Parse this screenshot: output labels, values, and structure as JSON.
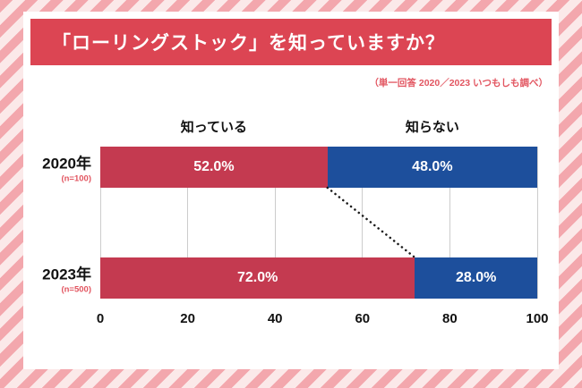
{
  "chart_data": {
    "type": "bar",
    "stacked": true,
    "orientation": "horizontal",
    "title": "「ローリングストック」を知っていますか？",
    "note": "（単一回答 2020／2023 いつもしも調べ）",
    "legend": {
      "know": "知っている",
      "not_know": "知らない"
    },
    "legend_position": "top",
    "grid": true,
    "xlim": [
      0,
      100
    ],
    "xticks": [
      "0",
      "20",
      "40",
      "60",
      "80",
      "100"
    ],
    "categories": [
      "2020年",
      "2023年"
    ],
    "sample_sizes": [
      "(n=100)",
      "(n=500)"
    ],
    "series": [
      {
        "name": "知っている",
        "color": "#c43a50",
        "values": [
          52.0,
          72.0
        ]
      },
      {
        "name": "知らない",
        "color": "#1d4f9c",
        "values": [
          48.0,
          28.0
        ]
      }
    ],
    "rows": [
      {
        "year": "2020年",
        "n": "(n=100)",
        "know": 52.0,
        "not_know": 48.0,
        "know_label": "52.0%",
        "not_know_label": "48.0%"
      },
      {
        "year": "2023年",
        "n": "(n=500)",
        "know": 72.0,
        "not_know": 28.0,
        "know_label": "72.0%",
        "not_know_label": "28.0%"
      }
    ],
    "colors": {
      "banner": "#dc4553",
      "know": "#c43a50",
      "not_know": "#1d4f9c",
      "note_text": "#e25560",
      "sample_text": "#e25560",
      "stripe": "#f3a7ad",
      "stripe_light": "#fbe9e9",
      "grid": "#cccccc",
      "trend_line": "#1a1a1a"
    }
  }
}
